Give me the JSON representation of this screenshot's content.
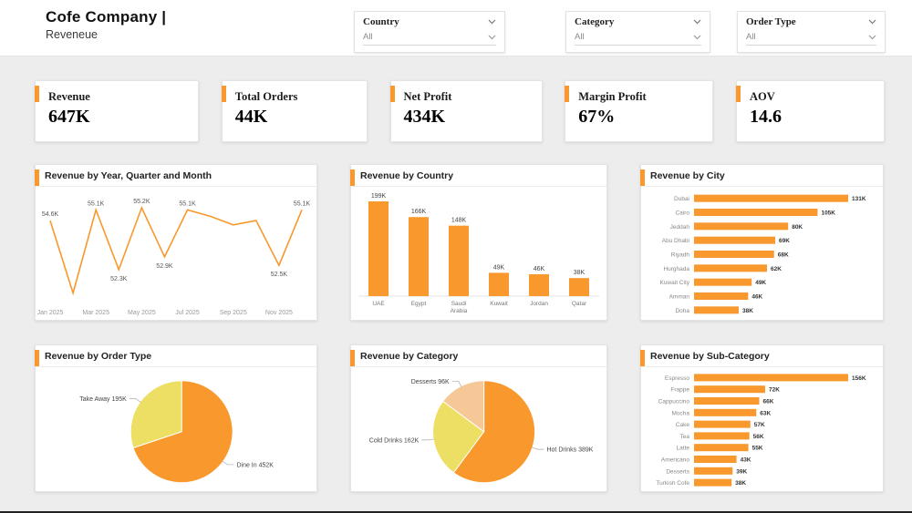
{
  "header": {
    "title": "Cofe Company |",
    "subtitle": "Reveneue"
  },
  "filters": [
    {
      "label": "Country",
      "value": "All"
    },
    {
      "label": "Category",
      "value": "All"
    },
    {
      "label": "Order Type",
      "value": "All"
    }
  ],
  "kpis": [
    {
      "label": "Revenue",
      "value": "647K"
    },
    {
      "label": "Total Orders",
      "value": "44K"
    },
    {
      "label": "Net Profit",
      "value": "434K"
    },
    {
      "label": "Margin Profit",
      "value": "67%"
    },
    {
      "label": "AOV",
      "value": "14.6"
    }
  ],
  "colors": {
    "accent": "#F8982D",
    "pie_yellow": "#EDDF63",
    "pie_peach": "#F6C897",
    "page_bg": "#EDEDED",
    "card_bg": "#FFFFFF"
  },
  "chart_data": [
    {
      "type": "line",
      "title": "Revenue by Year, Quarter and Month",
      "x": [
        "Jan 2025",
        "Feb 2025",
        "Mar 2025",
        "Apr 2025",
        "May 2025",
        "Jun 2025",
        "Jul 2025",
        "Aug 2025",
        "Sep 2025",
        "Oct 2025",
        "Nov 2025",
        "Dec 2025"
      ],
      "values": [
        54.6,
        51.2,
        55.1,
        52.3,
        55.2,
        52.9,
        55.1,
        54.8,
        54.4,
        54.6,
        52.5,
        55.1
      ],
      "unit": "K",
      "labeled_indices": [
        0,
        2,
        3,
        4,
        5,
        6,
        10,
        11
      ],
      "x_tick_indices": [
        0,
        2,
        4,
        6,
        8,
        10
      ],
      "ylim": [
        50.8,
        55.5
      ],
      "xlabel": "",
      "ylabel": ""
    },
    {
      "type": "bar",
      "title": "Revenue by Country",
      "categories": [
        "UAE",
        "Egypt",
        "Saudi Arabia",
        "Kuwait",
        "Jordan",
        "Qatar"
      ],
      "values": [
        199,
        166,
        148,
        49,
        46,
        38
      ],
      "unit": "K",
      "xlabel": "",
      "ylabel": ""
    },
    {
      "type": "hbar",
      "title": "Revenue by City",
      "categories": [
        "Dubai",
        "Cairo",
        "Jeddah",
        "Abu Dhabi",
        "Riyadh",
        "Hurghada",
        "Kuwait City",
        "Amman",
        "Doha"
      ],
      "values": [
        131,
        105,
        80,
        69,
        68,
        62,
        49,
        46,
        38
      ],
      "unit": "K",
      "xlabel": "",
      "ylabel": ""
    },
    {
      "type": "pie",
      "title": "Revenue by Order Type",
      "slices": [
        {
          "label": "Dine In",
          "value": 452,
          "display": "Dine In 452K",
          "color": "#F8982D"
        },
        {
          "label": "Take Away",
          "value": 195,
          "display": "Take Away 195K",
          "color": "#EDDF63"
        }
      ]
    },
    {
      "type": "pie",
      "title": "Revenue by Category",
      "slices": [
        {
          "label": "Hot Drinks",
          "value": 389,
          "display": "Hot Drinks 389K",
          "color": "#F8982D"
        },
        {
          "label": "Cold Drinks",
          "value": 162,
          "display": "Cold Drinks 162K",
          "color": "#EDDF63"
        },
        {
          "label": "Desserts",
          "value": 96,
          "display": "Desserts 96K",
          "color": "#F6C897"
        }
      ]
    },
    {
      "type": "hbar",
      "title": "Revenue by Sub-Category",
      "categories": [
        "Espresso",
        "Frappe",
        "Cappuccino",
        "Mocha",
        "Cake",
        "Tea",
        "Latte",
        "Americano",
        "Desserts",
        "Turkish Cofe"
      ],
      "values": [
        156,
        72,
        66,
        63,
        57,
        56,
        55,
        43,
        39,
        38
      ],
      "unit": "K",
      "xlabel": "",
      "ylabel": ""
    }
  ]
}
